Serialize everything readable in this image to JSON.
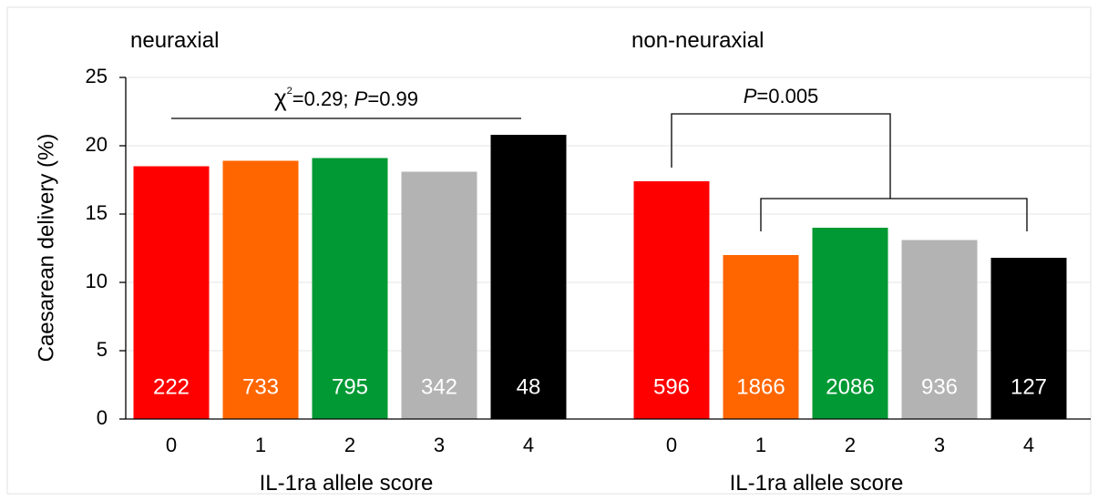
{
  "chart_data": {
    "type": "bar",
    "ylabel": "Caesarean delivery (%)",
    "ylim": [
      0,
      25
    ],
    "yticks": [
      0,
      5,
      10,
      15,
      20,
      25
    ],
    "grid": true,
    "colors": [
      "#ff0000",
      "#ff6600",
      "#009933",
      "#b3b3b3",
      "#000000"
    ],
    "panels": [
      {
        "title": "neuraxial",
        "xlabel": "IL-1ra allele score",
        "categories": [
          "0",
          "1",
          "2",
          "3",
          "4"
        ],
        "values": [
          18.5,
          18.9,
          19.1,
          18.1,
          20.8
        ],
        "n_labels": [
          "222",
          "733",
          "795",
          "342",
          "48"
        ],
        "annotation": {
          "chi_symbol": "χ",
          "chi_exponent": "2",
          "chi_value": "=0.29; ",
          "p_letter": "P",
          "p_value": "=0.99"
        }
      },
      {
        "title": "non-neuraxial",
        "xlabel": "IL-1ra allele score",
        "categories": [
          "0",
          "1",
          "2",
          "3",
          "4"
        ],
        "values": [
          17.4,
          12.0,
          14.0,
          13.1,
          11.8
        ],
        "n_labels": [
          "596",
          "1866",
          "2086",
          "936",
          "127"
        ],
        "annotation": {
          "p_letter": "P",
          "p_value": "=0.005"
        }
      }
    ]
  }
}
